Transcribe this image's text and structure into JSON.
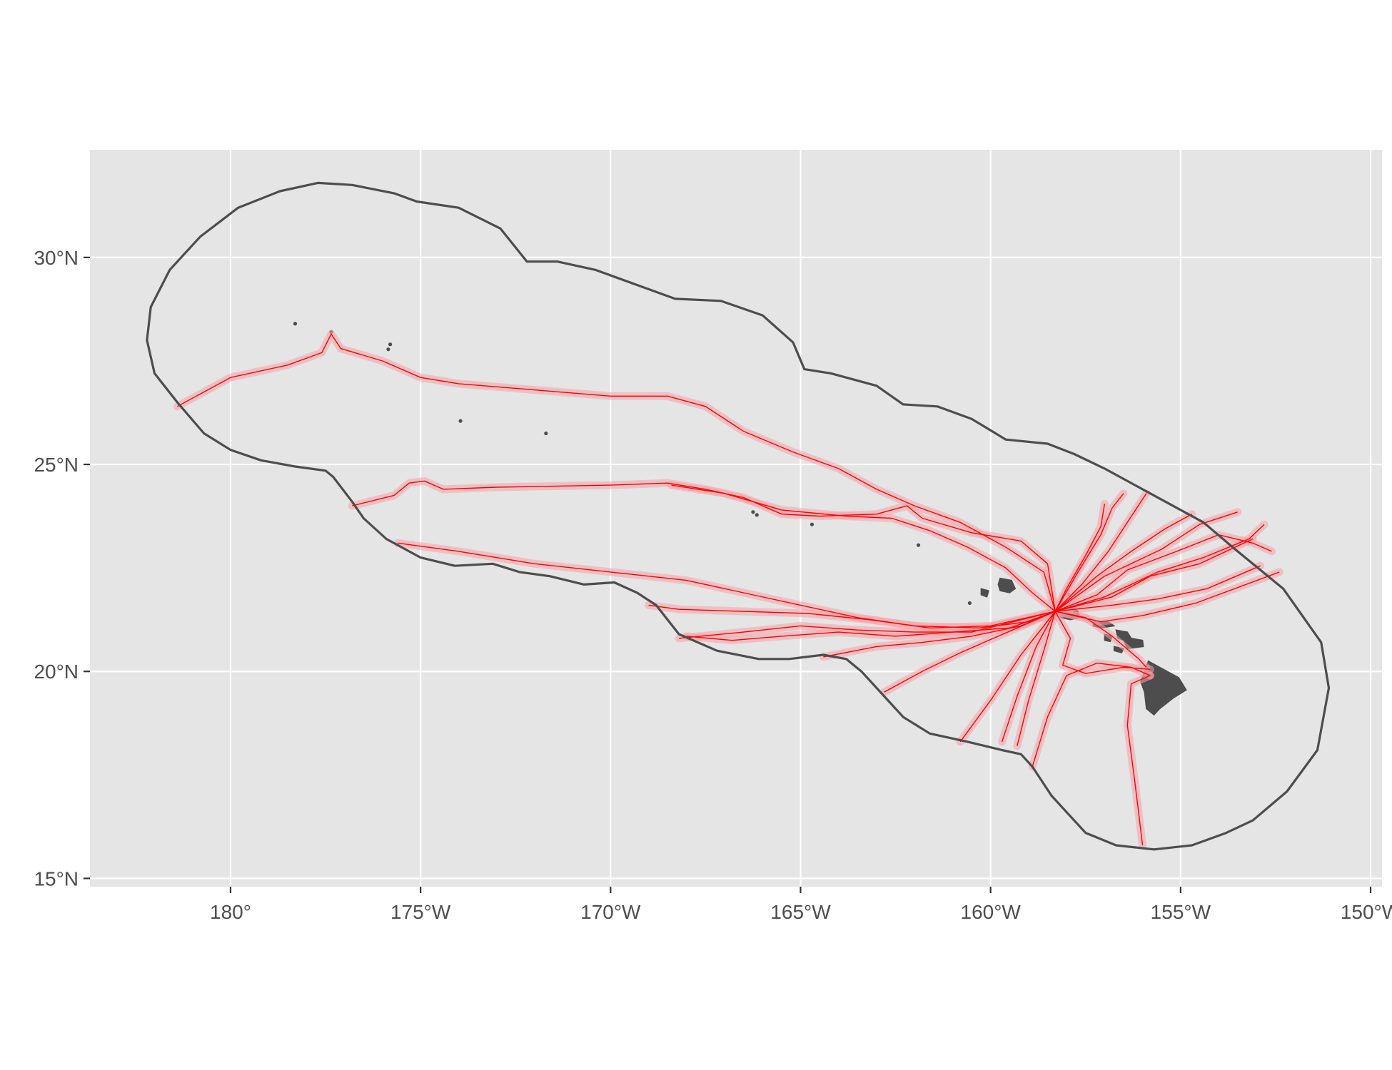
{
  "map": {
    "panel_color": "#e5e5e5",
    "grid_color": "#ffffff",
    "boundary_color": "#4d4d4d",
    "land_color": "#4d4d4d",
    "track_color": "#ff0000",
    "track_halo_color": "#f4a3a8",
    "xlim": [
      -183.7,
      -149.7
    ],
    "ylim": [
      14.8,
      32.6
    ],
    "x_ticks": [
      {
        "value": -180,
        "label": "180°"
      },
      {
        "value": -175,
        "label": "175°W"
      },
      {
        "value": -170,
        "label": "170°W"
      },
      {
        "value": -165,
        "label": "165°W"
      },
      {
        "value": -160,
        "label": "160°W"
      },
      {
        "value": -155,
        "label": "155°W"
      },
      {
        "value": -150,
        "label": "150°W"
      }
    ],
    "y_ticks": [
      {
        "value": 30,
        "label": "30°N"
      },
      {
        "value": 25,
        "label": "25°N"
      },
      {
        "value": 20,
        "label": "20°N"
      },
      {
        "value": 15,
        "label": "15°N"
      }
    ],
    "boundary": [
      [
        -181.4,
        26.5
      ],
      [
        -182.0,
        27.2
      ],
      [
        -182.2,
        28.0
      ],
      [
        -182.1,
        28.8
      ],
      [
        -181.6,
        29.7
      ],
      [
        -180.8,
        30.5
      ],
      [
        -179.8,
        31.2
      ],
      [
        -178.7,
        31.6
      ],
      [
        -177.7,
        31.8
      ],
      [
        -176.8,
        31.75
      ],
      [
        -175.7,
        31.55
      ],
      [
        -175.1,
        31.35
      ],
      [
        -174.0,
        31.2
      ],
      [
        -172.9,
        30.7
      ],
      [
        -172.2,
        29.9
      ],
      [
        -171.4,
        29.9
      ],
      [
        -170.4,
        29.7
      ],
      [
        -169.2,
        29.3
      ],
      [
        -168.3,
        29.0
      ],
      [
        -167.1,
        28.95
      ],
      [
        -166.0,
        28.6
      ],
      [
        -165.2,
        27.95
      ],
      [
        -164.9,
        27.3
      ],
      [
        -164.2,
        27.2
      ],
      [
        -163.0,
        26.9
      ],
      [
        -162.3,
        26.45
      ],
      [
        -161.4,
        26.4
      ],
      [
        -160.5,
        26.1
      ],
      [
        -159.6,
        25.6
      ],
      [
        -158.5,
        25.5
      ],
      [
        -157.8,
        25.25
      ],
      [
        -157.0,
        24.9
      ],
      [
        -156.1,
        24.45
      ],
      [
        -155.4,
        24.1
      ],
      [
        -154.4,
        23.6
      ],
      [
        -153.5,
        22.9
      ],
      [
        -152.3,
        22.0
      ],
      [
        -151.3,
        20.7
      ],
      [
        -151.1,
        19.6
      ],
      [
        -151.4,
        18.1
      ],
      [
        -152.2,
        17.1
      ],
      [
        -153.1,
        16.4
      ],
      [
        -153.8,
        16.1
      ],
      [
        -154.7,
        15.8
      ],
      [
        -155.7,
        15.7
      ],
      [
        -156.7,
        15.8
      ],
      [
        -157.5,
        16.1
      ],
      [
        -158.4,
        17.0
      ],
      [
        -158.9,
        17.7
      ],
      [
        -159.2,
        18.0
      ],
      [
        -159.7,
        18.1
      ],
      [
        -160.6,
        18.3
      ],
      [
        -161.6,
        18.5
      ],
      [
        -162.3,
        18.9
      ],
      [
        -162.8,
        19.4
      ],
      [
        -163.4,
        20.0
      ],
      [
        -163.8,
        20.3
      ],
      [
        -164.4,
        20.4
      ],
      [
        -165.3,
        20.3
      ],
      [
        -166.1,
        20.3
      ],
      [
        -167.2,
        20.5
      ],
      [
        -168.2,
        20.9
      ],
      [
        -168.8,
        21.6
      ],
      [
        -169.3,
        21.9
      ],
      [
        -169.9,
        22.15
      ],
      [
        -170.7,
        22.1
      ],
      [
        -171.6,
        22.3
      ],
      [
        -172.4,
        22.4
      ],
      [
        -173.1,
        22.6
      ],
      [
        -174.1,
        22.55
      ],
      [
        -175.0,
        22.75
      ],
      [
        -175.9,
        23.2
      ],
      [
        -176.5,
        23.7
      ],
      [
        -176.8,
        24.1
      ],
      [
        -177.3,
        24.7
      ],
      [
        -177.5,
        24.85
      ],
      [
        -178.3,
        24.95
      ],
      [
        -179.2,
        25.1
      ],
      [
        -180.0,
        25.35
      ],
      [
        -180.7,
        25.75
      ],
      [
        -181.4,
        26.5
      ]
    ],
    "tracks": [
      [
        [
          -181.4,
          26.4
        ],
        [
          -180.0,
          27.1
        ],
        [
          -178.5,
          27.4
        ],
        [
          -177.6,
          27.7
        ],
        [
          -177.35,
          28.15
        ],
        [
          -177.1,
          27.8
        ],
        [
          -176.0,
          27.5
        ],
        [
          -175.0,
          27.1
        ],
        [
          -174.0,
          26.95
        ],
        [
          -172.0,
          26.8
        ],
        [
          -170.0,
          26.65
        ],
        [
          -168.5,
          26.65
        ],
        [
          -167.5,
          26.4
        ],
        [
          -166.5,
          25.8
        ],
        [
          -165.2,
          25.3
        ],
        [
          -164.0,
          24.9
        ],
        [
          -163.0,
          24.4
        ],
        [
          -162.0,
          24.0
        ],
        [
          -160.8,
          23.6
        ],
        [
          -159.6,
          23.0
        ],
        [
          -158.6,
          22.4
        ],
        [
          -158.3,
          21.45
        ]
      ],
      [
        [
          -176.8,
          24.0
        ],
        [
          -175.7,
          24.25
        ],
        [
          -175.3,
          24.55
        ],
        [
          -174.9,
          24.6
        ],
        [
          -174.4,
          24.4
        ],
        [
          -173.0,
          24.45
        ],
        [
          -170.0,
          24.5
        ],
        [
          -168.5,
          24.55
        ],
        [
          -167.5,
          24.4
        ],
        [
          -166.5,
          24.2
        ],
        [
          -165.5,
          23.8
        ],
        [
          -164.5,
          23.75
        ],
        [
          -163.0,
          23.8
        ],
        [
          -162.2,
          24.0
        ],
        [
          -161.8,
          23.7
        ],
        [
          -160.5,
          23.35
        ],
        [
          -159.2,
          23.15
        ],
        [
          -158.5,
          22.6
        ],
        [
          -158.3,
          21.45
        ]
      ],
      [
        [
          -168.4,
          24.5
        ],
        [
          -167.0,
          24.3
        ],
        [
          -165.5,
          23.9
        ],
        [
          -163.8,
          23.75
        ],
        [
          -162.6,
          23.7
        ],
        [
          -161.6,
          23.4
        ],
        [
          -160.6,
          23.0
        ],
        [
          -159.6,
          22.5
        ],
        [
          -158.9,
          21.9
        ],
        [
          -158.3,
          21.45
        ]
      ],
      [
        [
          -175.6,
          23.1
        ],
        [
          -174.0,
          22.9
        ],
        [
          -172.0,
          22.6
        ],
        [
          -170.0,
          22.4
        ],
        [
          -168.0,
          22.2
        ],
        [
          -166.5,
          21.9
        ],
        [
          -165.0,
          21.6
        ],
        [
          -163.5,
          21.3
        ],
        [
          -162.0,
          21.1
        ],
        [
          -160.3,
          21.05
        ],
        [
          -159.0,
          21.2
        ],
        [
          -158.3,
          21.45
        ]
      ],
      [
        [
          -169.0,
          21.6
        ],
        [
          -168.2,
          21.5
        ],
        [
          -166.5,
          21.45
        ],
        [
          -164.8,
          21.4
        ],
        [
          -163.2,
          21.25
        ],
        [
          -161.6,
          21.05
        ],
        [
          -160.0,
          21.1
        ],
        [
          -158.3,
          21.45
        ]
      ],
      [
        [
          -168.2,
          20.8
        ],
        [
          -166.5,
          20.95
        ],
        [
          -165.0,
          21.1
        ],
        [
          -163.5,
          21.0
        ],
        [
          -162.0,
          20.95
        ],
        [
          -160.5,
          20.95
        ],
        [
          -158.3,
          21.45
        ]
      ],
      [
        [
          -168.0,
          20.85
        ],
        [
          -166.8,
          20.75
        ],
        [
          -165.5,
          20.85
        ],
        [
          -164.0,
          20.95
        ],
        [
          -162.5,
          20.85
        ],
        [
          -161.0,
          20.95
        ],
        [
          -159.5,
          21.05
        ],
        [
          -158.3,
          21.45
        ]
      ],
      [
        [
          -164.4,
          20.35
        ],
        [
          -163.0,
          20.6
        ],
        [
          -161.8,
          20.7
        ],
        [
          -160.5,
          20.85
        ],
        [
          -159.2,
          21.1
        ],
        [
          -158.3,
          21.45
        ]
      ],
      [
        [
          -162.8,
          19.5
        ],
        [
          -161.8,
          20.0
        ],
        [
          -160.8,
          20.45
        ],
        [
          -159.8,
          20.85
        ],
        [
          -158.3,
          21.45
        ]
      ],
      [
        [
          -160.8,
          18.3
        ],
        [
          -160.0,
          19.3
        ],
        [
          -159.2,
          20.4
        ],
        [
          -158.3,
          21.45
        ]
      ],
      [
        [
          -159.7,
          18.3
        ],
        [
          -159.3,
          19.4
        ],
        [
          -158.8,
          20.6
        ],
        [
          -158.3,
          21.45
        ]
      ],
      [
        [
          -159.3,
          18.2
        ],
        [
          -159.0,
          19.3
        ],
        [
          -158.6,
          20.5
        ],
        [
          -158.3,
          21.45
        ]
      ],
      [
        [
          -158.9,
          17.7
        ],
        [
          -158.5,
          18.9
        ],
        [
          -158.0,
          19.9
        ],
        [
          -157.2,
          20.2
        ],
        [
          -156.3,
          20.1
        ],
        [
          -155.8,
          19.9
        ]
      ],
      [
        [
          -156.0,
          15.8
        ],
        [
          -156.2,
          17.3
        ],
        [
          -156.4,
          18.7
        ],
        [
          -156.3,
          19.7
        ],
        [
          -155.8,
          19.9
        ]
      ],
      [
        [
          -158.3,
          21.45
        ],
        [
          -157.9,
          20.8
        ],
        [
          -158.1,
          20.15
        ],
        [
          -157.5,
          19.95
        ],
        [
          -156.5,
          20.1
        ],
        [
          -155.8,
          20.05
        ]
      ],
      [
        [
          -158.3,
          21.45
        ],
        [
          -157.5,
          21.3
        ],
        [
          -156.8,
          20.85
        ],
        [
          -156.1,
          20.3
        ],
        [
          -155.9,
          20.1
        ]
      ],
      [
        [
          -158.3,
          21.45
        ],
        [
          -157.6,
          22.1
        ],
        [
          -156.9,
          22.9
        ],
        [
          -156.4,
          23.6
        ],
        [
          -155.9,
          24.3
        ]
      ],
      [
        [
          -158.3,
          21.45
        ],
        [
          -157.7,
          22.4
        ],
        [
          -157.1,
          23.3
        ],
        [
          -156.8,
          23.95
        ],
        [
          -156.5,
          24.3
        ]
      ],
      [
        [
          -158.3,
          21.45
        ],
        [
          -158.0,
          22.0
        ],
        [
          -157.5,
          22.8
        ],
        [
          -157.1,
          23.5
        ],
        [
          -157.0,
          24.05
        ]
      ],
      [
        [
          -158.3,
          21.45
        ],
        [
          -157.2,
          22.3
        ],
        [
          -156.3,
          22.9
        ],
        [
          -155.4,
          23.45
        ],
        [
          -154.7,
          23.8
        ]
      ],
      [
        [
          -158.3,
          21.45
        ],
        [
          -157.0,
          22.3
        ],
        [
          -155.5,
          22.95
        ],
        [
          -154.5,
          23.55
        ],
        [
          -153.5,
          23.85
        ]
      ],
      [
        [
          -158.3,
          21.45
        ],
        [
          -157.0,
          21.8
        ],
        [
          -155.6,
          22.4
        ],
        [
          -154.4,
          22.75
        ],
        [
          -153.2,
          23.2
        ],
        [
          -152.8,
          23.55
        ]
      ],
      [
        [
          -158.3,
          21.45
        ],
        [
          -156.8,
          21.8
        ],
        [
          -155.8,
          22.3
        ],
        [
          -154.5,
          22.6
        ],
        [
          -153.1,
          23.2
        ]
      ],
      [
        [
          -158.3,
          21.45
        ],
        [
          -156.8,
          21.6
        ],
        [
          -155.6,
          21.75
        ],
        [
          -154.3,
          22.0
        ],
        [
          -152.9,
          22.55
        ]
      ],
      [
        [
          -158.3,
          21.45
        ],
        [
          -157.1,
          21.2
        ],
        [
          -156.0,
          21.35
        ],
        [
          -154.6,
          21.65
        ],
        [
          -152.4,
          22.4
        ]
      ],
      [
        [
          -158.3,
          21.45
        ],
        [
          -157.2,
          21.85
        ],
        [
          -156.4,
          22.45
        ],
        [
          -155.1,
          22.9
        ],
        [
          -154.0,
          23.3
        ],
        [
          -153.1,
          23.1
        ],
        [
          -152.6,
          22.9
        ]
      ]
    ],
    "islands": [
      [
        [
          -159.75,
          22.25
        ],
        [
          -159.45,
          22.2
        ],
        [
          -159.35,
          22.0
        ],
        [
          -159.5,
          21.9
        ],
        [
          -159.75,
          21.95
        ],
        [
          -159.8,
          22.1
        ]
      ],
      [
        [
          -160.25,
          22.0
        ],
        [
          -160.05,
          21.95
        ],
        [
          -160.1,
          21.8
        ],
        [
          -160.25,
          21.85
        ]
      ],
      [
        [
          -158.3,
          21.6
        ],
        [
          -158.0,
          21.7
        ],
        [
          -157.7,
          21.45
        ],
        [
          -157.65,
          21.3
        ],
        [
          -157.9,
          21.25
        ],
        [
          -158.15,
          21.3
        ],
        [
          -158.25,
          21.45
        ]
      ],
      [
        [
          -157.3,
          21.2
        ],
        [
          -156.9,
          21.2
        ],
        [
          -156.75,
          21.1
        ],
        [
          -157.1,
          21.05
        ],
        [
          -157.3,
          21.1
        ]
      ],
      [
        [
          -157.0,
          20.9
        ],
        [
          -156.8,
          20.85
        ],
        [
          -156.85,
          20.72
        ],
        [
          -157.0,
          20.75
        ]
      ],
      [
        [
          -156.7,
          21.0
        ],
        [
          -156.4,
          20.95
        ],
        [
          -156.3,
          20.8
        ],
        [
          -156.0,
          20.75
        ],
        [
          -155.98,
          20.6
        ],
        [
          -156.4,
          20.55
        ],
        [
          -156.5,
          20.75
        ],
        [
          -156.65,
          20.8
        ]
      ],
      [
        [
          -156.75,
          20.6
        ],
        [
          -156.5,
          20.55
        ],
        [
          -156.55,
          20.45
        ],
        [
          -156.75,
          20.5
        ]
      ],
      [
        [
          -155.85,
          20.25
        ],
        [
          -155.55,
          20.1
        ],
        [
          -155.05,
          19.85
        ],
        [
          -154.85,
          19.55
        ],
        [
          -155.2,
          19.35
        ],
        [
          -155.55,
          19.1
        ],
        [
          -155.7,
          18.95
        ],
        [
          -155.9,
          19.1
        ],
        [
          -155.95,
          19.5
        ],
        [
          -156.05,
          19.75
        ],
        [
          -155.95,
          20.0
        ]
      ]
    ],
    "islets": [
      [
        -178.3,
        28.4
      ],
      [
        -177.35,
        28.2
      ],
      [
        -175.8,
        27.9
      ],
      [
        -175.85,
        27.78
      ],
      [
        -173.95,
        26.05
      ],
      [
        -171.7,
        25.75
      ],
      [
        -166.25,
        23.85
      ],
      [
        -166.15,
        23.78
      ],
      [
        -164.7,
        23.55
      ],
      [
        -161.9,
        23.05
      ],
      [
        -160.55,
        21.65
      ],
      [
        -157.95,
        21.85
      ]
    ]
  }
}
